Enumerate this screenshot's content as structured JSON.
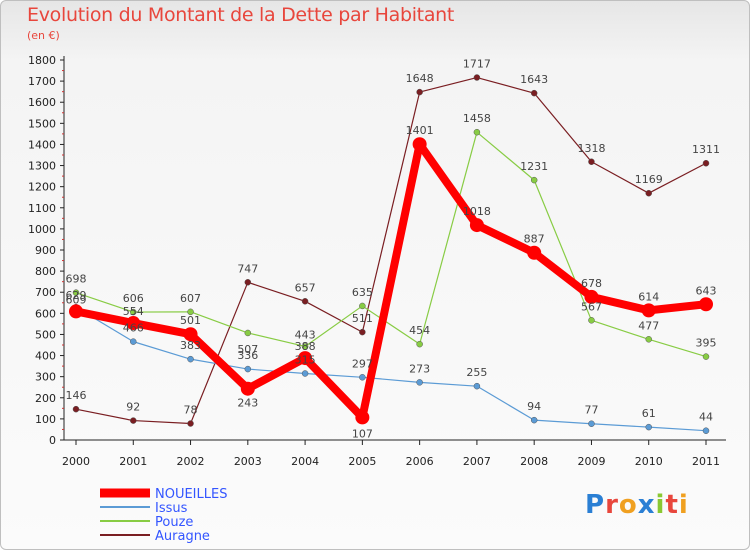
{
  "header": {
    "title": "Evolution du Montant de la Dette par Habitant",
    "subtitle": "(en €)"
  },
  "logo": {
    "text": "Proxiti",
    "colors": [
      "#2a7fd4",
      "#e8463c",
      "#f0a020",
      "#2a7fd4",
      "#8ac832",
      "#e8463c",
      "#f0a020"
    ]
  },
  "chart_data": {
    "type": "line",
    "x": [
      "2000",
      "2001",
      "2002",
      "2003",
      "2004",
      "2005",
      "2006",
      "2007",
      "2008",
      "2009",
      "2010",
      "2011"
    ],
    "ylim": [
      0,
      1800
    ],
    "yticks": [
      0,
      100,
      200,
      300,
      400,
      500,
      600,
      700,
      800,
      900,
      1000,
      1100,
      1200,
      1300,
      1400,
      1500,
      1600,
      1700,
      1800
    ],
    "grid": false,
    "legend_position": "bottom-left",
    "series": [
      {
        "name": "Auragne",
        "color": "#7a1e22",
        "values": [
          146,
          92,
          78,
          747,
          657,
          511,
          1648,
          1717,
          1643,
          1318,
          1169,
          1311
        ]
      },
      {
        "name": "Pouze",
        "color": "#88cc44",
        "values": [
          698,
          606,
          607,
          507,
          443,
          635,
          454,
          1458,
          1231,
          567,
          477,
          395
        ]
      },
      {
        "name": "Issus",
        "color": "#5b9bd5",
        "values": [
          629,
          466,
          383,
          336,
          315,
          297,
          273,
          255,
          94,
          77,
          61,
          44
        ]
      },
      {
        "name": "NOUEILLES",
        "color": "#ff0000",
        "values": [
          609,
          554,
          501,
          243,
          388,
          107,
          1401,
          1018,
          887,
          678,
          614,
          643
        ]
      }
    ],
    "legend": [
      {
        "name": "NOUEILLES",
        "color": "#ff0000",
        "text_color": "#3355ff"
      },
      {
        "name": "Issus",
        "color": "#5b9bd5",
        "text_color": "#3355ff"
      },
      {
        "name": "Pouze",
        "color": "#88cc44",
        "text_color": "#3355ff"
      },
      {
        "name": "Auragne",
        "color": "#7a1e22",
        "text_color": "#3355ff"
      }
    ]
  }
}
